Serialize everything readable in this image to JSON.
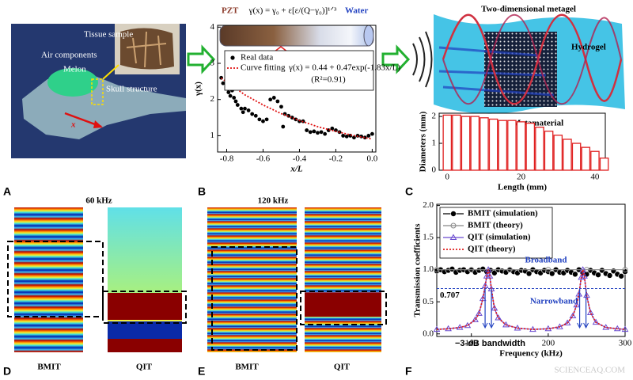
{
  "figure": {
    "panel_labels": [
      "A",
      "B",
      "C",
      "D",
      "E",
      "F"
    ],
    "anatomy": {
      "tissue": "Tissue sample",
      "air": "Air components",
      "melon": "Melon",
      "skull": "Skull structure",
      "axis": "x"
    },
    "metagel": {
      "title": "Two-dimensional metagel",
      "hydrogel": "Hydrogel",
      "metamaterial": "Metamaterial"
    },
    "panel_a": {
      "title": "60 kHz",
      "left": "BMIT",
      "right": "QIT"
    },
    "panel_b": {
      "title": "120 kHz",
      "left": "BMIT",
      "right": "QIT"
    },
    "watermark": "SCIENCEAQ.COM"
  },
  "chart_data": [
    {
      "type": "scatter",
      "header": {
        "left": "PZT",
        "formula": "γ(x) = γ₀ + ε[ε/(Q−γ₀)]¹ᐟ³",
        "right": "Water"
      },
      "xlabel": "x/L",
      "ylabel": "γ(x)",
      "xlim": [
        -0.85,
        0.02
      ],
      "ylim": [
        0.55,
        4.05
      ],
      "xticks": [
        -0.8,
        -0.6,
        -0.4,
        -0.2,
        {
          "value": 0,
          "label": "0.0"
        }
      ],
      "yticks": [
        1,
        2,
        3,
        4
      ],
      "fit_equation": "γ(x) = 0.44 + 0.47exp(-1.83x/L)",
      "fit_r2": "(R²=0.91)",
      "series": [
        {
          "name": "Real data",
          "color": "#000000",
          "style": "dot",
          "x": [
            -0.83,
            -0.82,
            -0.8,
            -0.79,
            -0.78,
            -0.77,
            -0.76,
            -0.75,
            -0.74,
            -0.72,
            -0.71,
            -0.7,
            -0.68,
            -0.66,
            -0.64,
            -0.62,
            -0.6,
            -0.58,
            -0.56,
            -0.54,
            -0.52,
            -0.5,
            -0.49,
            -0.48,
            -0.46,
            -0.44,
            -0.42,
            -0.4,
            -0.38,
            -0.36,
            -0.34,
            -0.32,
            -0.3,
            -0.28,
            -0.26,
            -0.24,
            -0.22,
            -0.2,
            -0.18,
            -0.16,
            -0.14,
            -0.12,
            -0.1,
            -0.08,
            -0.06,
            -0.04,
            -0.02,
            0.0
          ],
          "values": [
            2.6,
            2.45,
            2.3,
            2.2,
            2.1,
            2.25,
            2.05,
            1.95,
            1.85,
            1.75,
            1.65,
            1.75,
            1.7,
            1.6,
            1.55,
            1.45,
            1.4,
            1.45,
            2.0,
            2.05,
            1.95,
            1.8,
            1.25,
            1.6,
            1.55,
            1.5,
            1.45,
            1.4,
            1.4,
            1.15,
            1.1,
            1.12,
            1.08,
            1.1,
            1.05,
            1.15,
            1.2,
            1.15,
            1.1,
            1.0,
            0.98,
            1.0,
            0.95,
            1.0,
            0.98,
            0.95,
            1.0,
            1.05
          ]
        },
        {
          "name": "Curve fitting",
          "color": "#e01010",
          "style": "dotted-line",
          "x": [
            -0.83,
            -0.7,
            -0.6,
            -0.5,
            -0.4,
            -0.3,
            -0.2,
            -0.1,
            0.0
          ],
          "values": [
            2.59,
            2.13,
            1.85,
            1.61,
            1.42,
            1.25,
            1.12,
            1.0,
            0.91
          ]
        }
      ]
    },
    {
      "type": "bar",
      "color": "#e02020",
      "xlabel": "Length (mm)",
      "ylabel": "Diameters (mm)",
      "xlim": [
        -2.2,
        42.8
      ],
      "ylim": [
        0,
        2.12
      ],
      "xticks": [
        0,
        20,
        40
      ],
      "yticks": [
        0,
        1,
        2
      ],
      "bar_width": 2.2,
      "x": [
        0,
        2.5,
        5,
        7.5,
        10,
        12.5,
        15,
        17.5,
        20,
        22.5,
        25,
        27.5,
        30,
        32.5,
        35,
        37.5,
        40,
        42.5
      ],
      "values": [
        2.05,
        2.05,
        2.0,
        2.0,
        1.95,
        1.9,
        1.85,
        1.85,
        1.8,
        1.75,
        1.6,
        1.45,
        1.3,
        1.15,
        1.0,
        0.85,
        0.7,
        0.45
      ]
    },
    {
      "type": "line",
      "xlabel": "Frequency (kHz)",
      "ylabel": "Transmission coefficients",
      "xlim": [
        55,
        300
      ],
      "ylim": [
        -0.04,
        2.02
      ],
      "xticks": [
        100,
        200,
        300
      ],
      "yticks": [
        {
          "value": 0,
          "label": "0.0"
        },
        0.5,
        {
          "value": 1,
          "label": "1.0"
        },
        1.5,
        {
          "value": 2,
          "label": "2.0"
        }
      ],
      "ref_line": 0.707,
      "annotations": {
        "broadband": "Broadband",
        "narrowband": "Narrowband",
        "bandwidth": "−3-dB bandwidth"
      },
      "series": [
        {
          "name": "BMIT (simulation)",
          "color": "#000000",
          "style": "filled-circle",
          "x": [
            55,
            60,
            65,
            70,
            75,
            80,
            85,
            90,
            95,
            100,
            105,
            110,
            115,
            120,
            125,
            130,
            135,
            140,
            145,
            150,
            155,
            160,
            165,
            170,
            175,
            180,
            185,
            190,
            195,
            200,
            205,
            210,
            215,
            220,
            225,
            230,
            235,
            240,
            245,
            250,
            255,
            260,
            265,
            270,
            275,
            280,
            285,
            290,
            295,
            300
          ],
          "values": [
            0.98,
            1.0,
            0.97,
            0.99,
            1.01,
            0.96,
            0.99,
            1.0,
            0.97,
            1.0,
            0.96,
            0.99,
            1.01,
            0.97,
            0.99,
            0.95,
            1.0,
            0.98,
            0.96,
            1.0,
            0.97,
            0.95,
            0.99,
            0.98,
            0.94,
            1.0,
            0.97,
            0.95,
            0.99,
            0.97,
            0.94,
            1.0,
            0.96,
            0.95,
            0.99,
            0.96,
            0.93,
            1.0,
            0.95,
            0.93,
            0.99,
            0.95,
            0.92,
            0.99,
            0.94,
            0.91,
            0.98,
            0.93,
            0.9,
            0.97
          ]
        },
        {
          "name": "BMIT (theory)",
          "color": "#888888",
          "style": "open-circle",
          "x": [
            55,
            100,
            150,
            200,
            250,
            300
          ],
          "values": [
            1.0,
            1.0,
            1.0,
            1.0,
            1.0,
            1.0
          ]
        },
        {
          "name": "QIT (simulation)",
          "color": "#6a4bd0",
          "style": "triangle",
          "x": [
            55,
            70,
            85,
            95,
            105,
            110,
            115,
            118,
            120,
            122,
            124,
            126,
            130,
            135,
            145,
            160,
            180,
            200,
            215,
            225,
            232,
            237,
            240,
            243,
            245,
            247,
            250,
            255,
            262,
            275,
            290,
            300
          ],
          "values": [
            0.07,
            0.08,
            0.1,
            0.13,
            0.22,
            0.32,
            0.55,
            0.75,
            0.9,
            1.0,
            0.9,
            0.7,
            0.4,
            0.25,
            0.14,
            0.09,
            0.07,
            0.08,
            0.11,
            0.17,
            0.28,
            0.45,
            0.62,
            0.88,
            1.0,
            0.9,
            0.6,
            0.33,
            0.18,
            0.1,
            0.08,
            0.07
          ]
        },
        {
          "name": "QIT (theory)",
          "color": "#e02020",
          "style": "dotted-line",
          "x": [
            55,
            70,
            85,
            95,
            105,
            110,
            115,
            118,
            120,
            122,
            124,
            126,
            130,
            135,
            145,
            160,
            180,
            200,
            215,
            225,
            232,
            237,
            240,
            243,
            245,
            247,
            250,
            255,
            262,
            275,
            290,
            300
          ],
          "values": [
            0.07,
            0.08,
            0.1,
            0.13,
            0.22,
            0.32,
            0.55,
            0.75,
            0.9,
            1.0,
            0.9,
            0.7,
            0.4,
            0.25,
            0.14,
            0.09,
            0.07,
            0.08,
            0.11,
            0.17,
            0.28,
            0.45,
            0.62,
            0.88,
            1.0,
            0.9,
            0.6,
            0.33,
            0.18,
            0.1,
            0.08,
            0.07
          ]
        }
      ]
    }
  ]
}
